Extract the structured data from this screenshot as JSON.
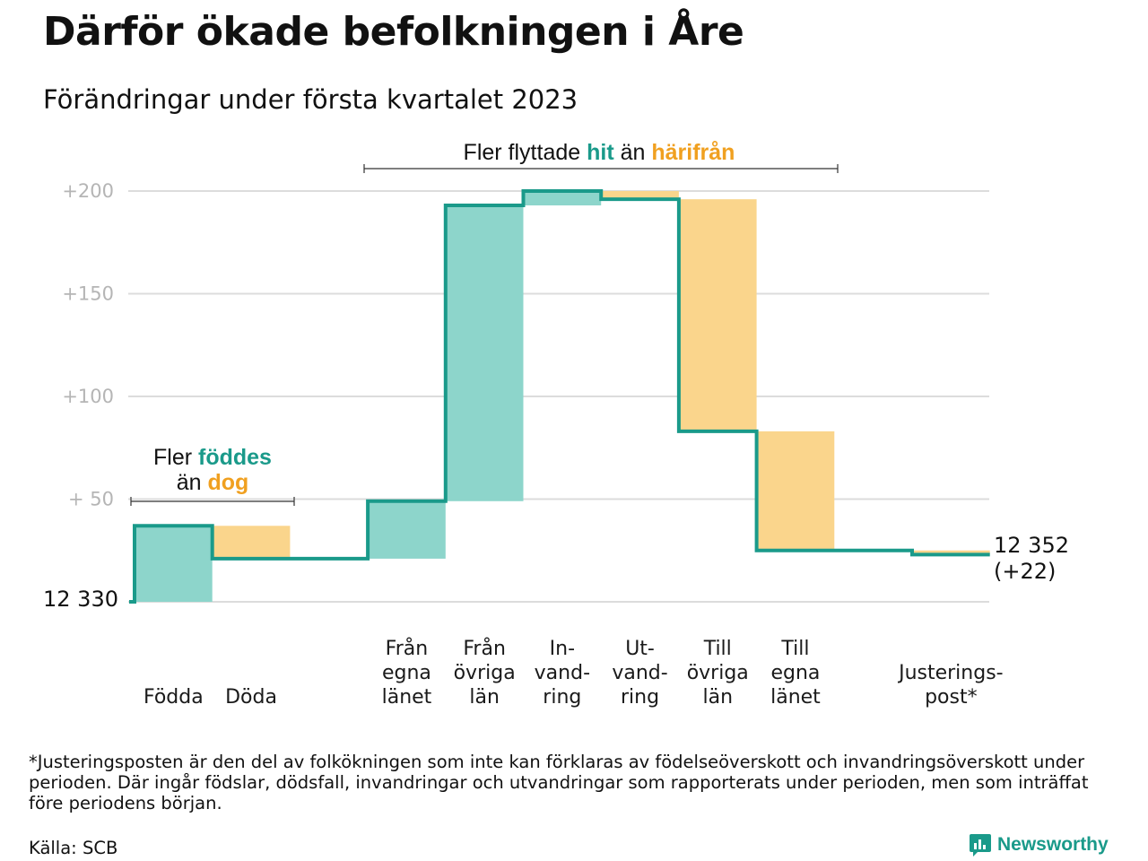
{
  "header": {
    "title": "Därför ökade befolkningen i Åre",
    "subtitle": "Förändringar under första kvartalet 2023"
  },
  "chart_data": {
    "type": "waterfall",
    "start_value": 12330,
    "start_label": "12 330",
    "end_value": 12352,
    "end_label": "12 352",
    "end_change_label": "(+22)",
    "y_ticks": [
      {
        "value": 50,
        "label": "+ 50"
      },
      {
        "value": 100,
        "label": "+100"
      },
      {
        "value": 150,
        "label": "+150"
      },
      {
        "value": 200,
        "label": "+200"
      }
    ],
    "ylim": [
      0,
      200
    ],
    "categories": [
      {
        "label": [
          "Födda"
        ],
        "change": 37,
        "color": "#8dd5cb"
      },
      {
        "label": [
          "Döda"
        ],
        "change": -16,
        "color": "#fad58c"
      },
      {
        "label": [
          ""
        ],
        "change": 0,
        "color": "none"
      },
      {
        "label": [
          "Från",
          "egna",
          "länet"
        ],
        "change": 28,
        "color": "#8dd5cb"
      },
      {
        "label": [
          "Från",
          "övriga",
          "län"
        ],
        "change": 144,
        "color": "#8dd5cb"
      },
      {
        "label": [
          "In-",
          "vand-",
          "ring"
        ],
        "change": 7,
        "color": "#8dd5cb"
      },
      {
        "label": [
          "Ut-",
          "vand-",
          "ring"
        ],
        "change": -4,
        "color": "#fad58c"
      },
      {
        "label": [
          "Till",
          "övriga",
          "län"
        ],
        "change": -113,
        "color": "#fad58c"
      },
      {
        "label": [
          "Till",
          "egna",
          "länet"
        ],
        "change": -58,
        "color": "#fad58c"
      },
      {
        "label": [
          ""
        ],
        "change": 0,
        "color": "none"
      },
      {
        "label": [
          "Justerings-",
          "post*"
        ],
        "change": -2,
        "color": "#fad58c"
      }
    ],
    "line_color": "#1a9a8a",
    "annotations": {
      "births": {
        "line1_prefix": "Fler ",
        "line1_highlight": "föddes",
        "line2_prefix": "än ",
        "line2_highlight": "dog"
      },
      "migration": {
        "prefix": "Fler flyttade ",
        "highlight1": "hit",
        "middle": " än ",
        "highlight2": "härifrån"
      }
    }
  },
  "footer": {
    "footnote": "*Justeringsposten är den del av folkökningen som inte kan förklaras av födelseöverskott och invandringsöverskott under perioden. Där ingår födslar, dödsfall, invandringar och utvandringar som rapporterats under perioden, men som inträffat före periodens början.",
    "source": "Källa: SCB",
    "brand": "Newsworthy"
  },
  "colors": {
    "teal": "#1a9a8a",
    "teal_light": "#8dd5cb",
    "orange": "#f0a020",
    "orange_light": "#fad58c"
  }
}
